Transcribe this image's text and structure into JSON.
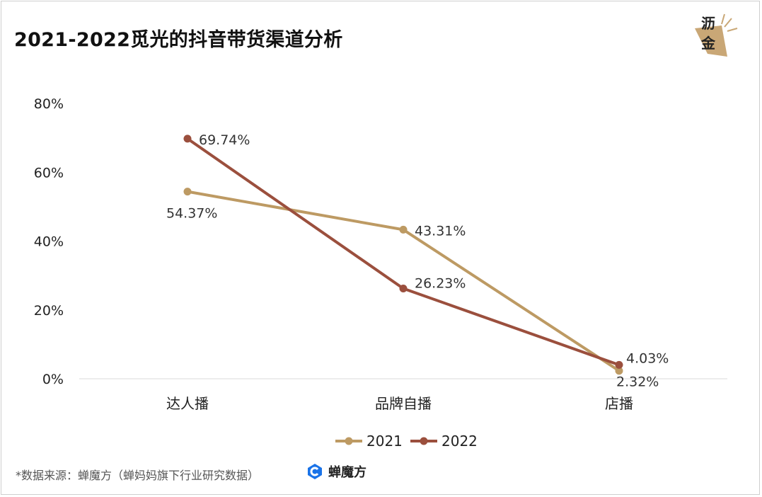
{
  "title": "2021-2022觅光的抖音带货渠道分析",
  "logo": {
    "line1": "沥",
    "line2": "金"
  },
  "source": "*数据来源：蝉魔方（蝉妈妈旗下行业研究数据）",
  "brand": {
    "name": "蝉魔方",
    "icon": "chanmofang-logo-icon",
    "color": "#1a73e8"
  },
  "chart_data": {
    "type": "line",
    "title": "2021-2022觅光的抖音带货渠道分析",
    "categories": [
      "达人播",
      "品牌自播",
      "店播"
    ],
    "ylim": [
      0,
      80
    ],
    "yticks": [
      "0%",
      "20%",
      "40%",
      "60%",
      "80%"
    ],
    "ytick_values": [
      0,
      20,
      40,
      60,
      80
    ],
    "grid": false,
    "legend_position": "bottom",
    "series": [
      {
        "name": "2021",
        "color": "#bd9a63",
        "values": [
          54.37,
          43.31,
          2.32
        ],
        "labels": [
          "54.37%",
          "43.31%",
          "2.32%"
        ]
      },
      {
        "name": "2022",
        "color": "#9b4f3d",
        "values": [
          69.74,
          26.23,
          4.03
        ],
        "labels": [
          "69.74%",
          "26.23%",
          "4.03%"
        ]
      }
    ]
  }
}
